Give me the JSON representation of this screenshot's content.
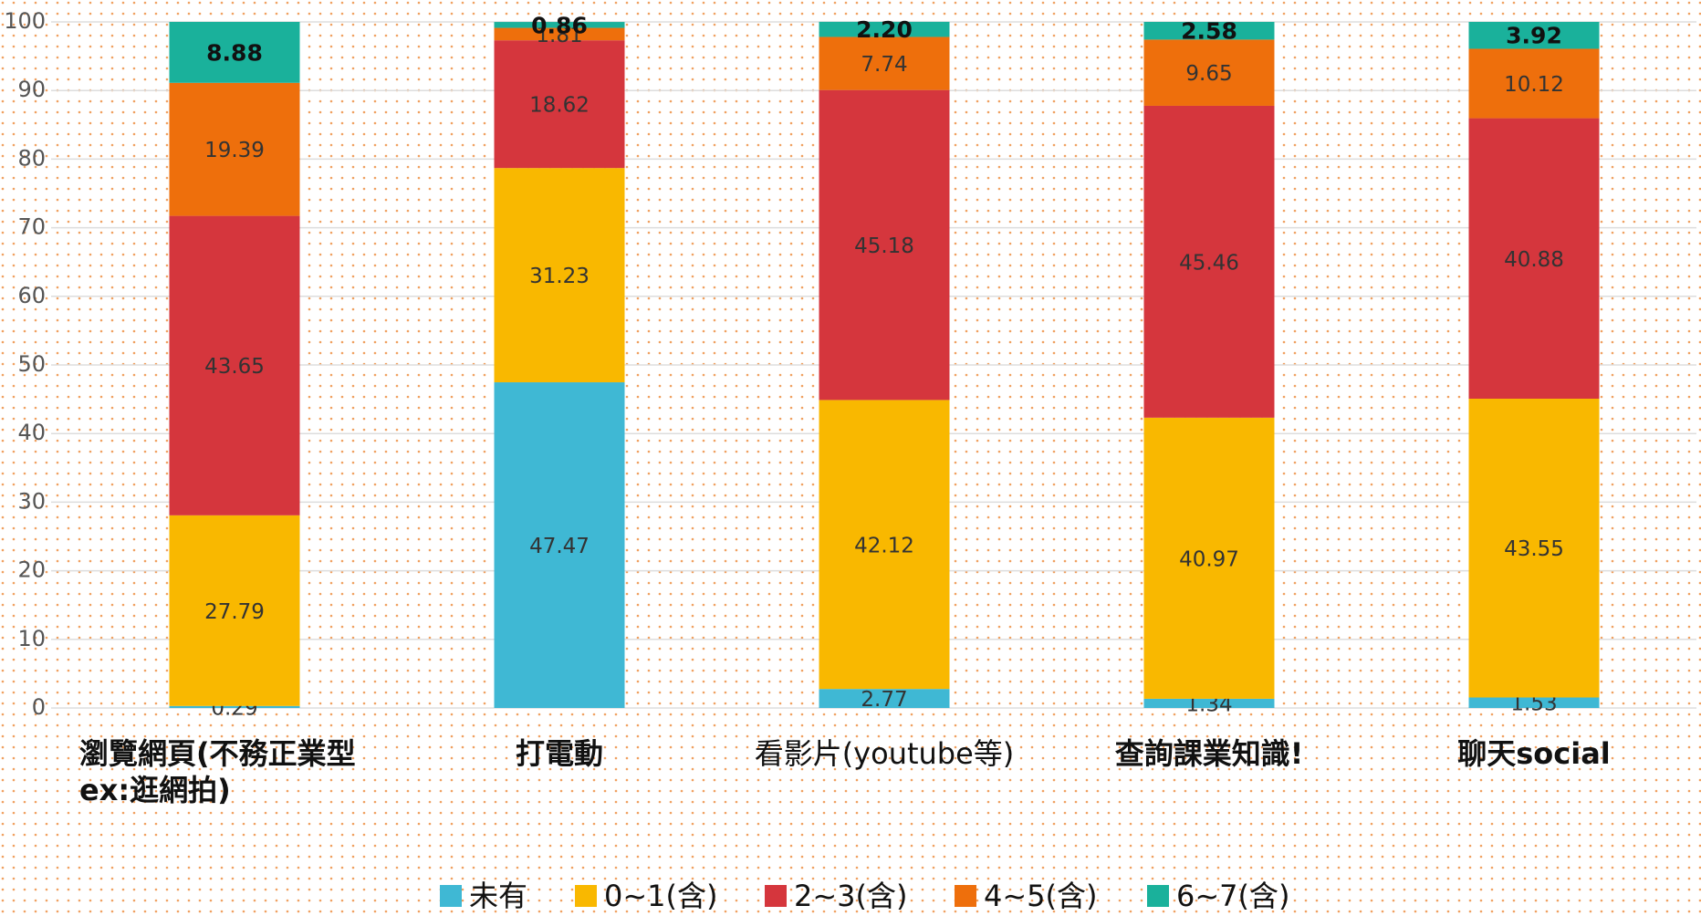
{
  "chart_data": {
    "type": "stacked_bar",
    "categories": [
      "瀏覽網頁(不務正業型\nex:逛網拍)",
      "打電動",
      "看影片(youtube等)",
      "查詢課業知識!",
      "聊天social"
    ],
    "series": [
      {
        "name": "未有",
        "color": "#3fb8d4",
        "values": [
          0.29,
          47.47,
          2.77,
          1.34,
          1.53
        ],
        "value_labels": [
          "0.29",
          "47.47",
          "2.77",
          "1.34",
          "1.53"
        ]
      },
      {
        "name": "0~1(含)",
        "color": "#f9b800",
        "values": [
          27.79,
          31.23,
          42.12,
          40.97,
          43.55
        ],
        "value_labels": [
          "27.79",
          "31.23",
          "42.12",
          "40.97",
          "43.55"
        ]
      },
      {
        "name": "2~3(含)",
        "color": "#d5363d",
        "values": [
          43.65,
          18.62,
          45.18,
          45.46,
          40.88
        ],
        "value_labels": [
          "43.65",
          "18.62",
          "45.18",
          "45.46",
          "40.88"
        ]
      },
      {
        "name": "4~5(含)",
        "color": "#ee6f0c",
        "values": [
          19.39,
          1.81,
          7.74,
          9.65,
          10.12
        ],
        "value_labels": [
          "19.39",
          "1.81",
          "7.74",
          "9.65",
          "10.12"
        ]
      },
      {
        "name": "6~7(含)",
        "color": "#1ab19b",
        "values": [
          8.88,
          0.86,
          2.2,
          2.58,
          3.92
        ],
        "value_labels": [
          "8.88",
          "0.86",
          "2.20",
          "2.58",
          "3.92"
        ]
      }
    ],
    "ylim": [
      0,
      100
    ],
    "yticks": [
      0,
      10,
      20,
      30,
      40,
      50,
      60,
      70,
      80,
      90,
      100
    ],
    "grid": true,
    "legend": "bottom"
  }
}
